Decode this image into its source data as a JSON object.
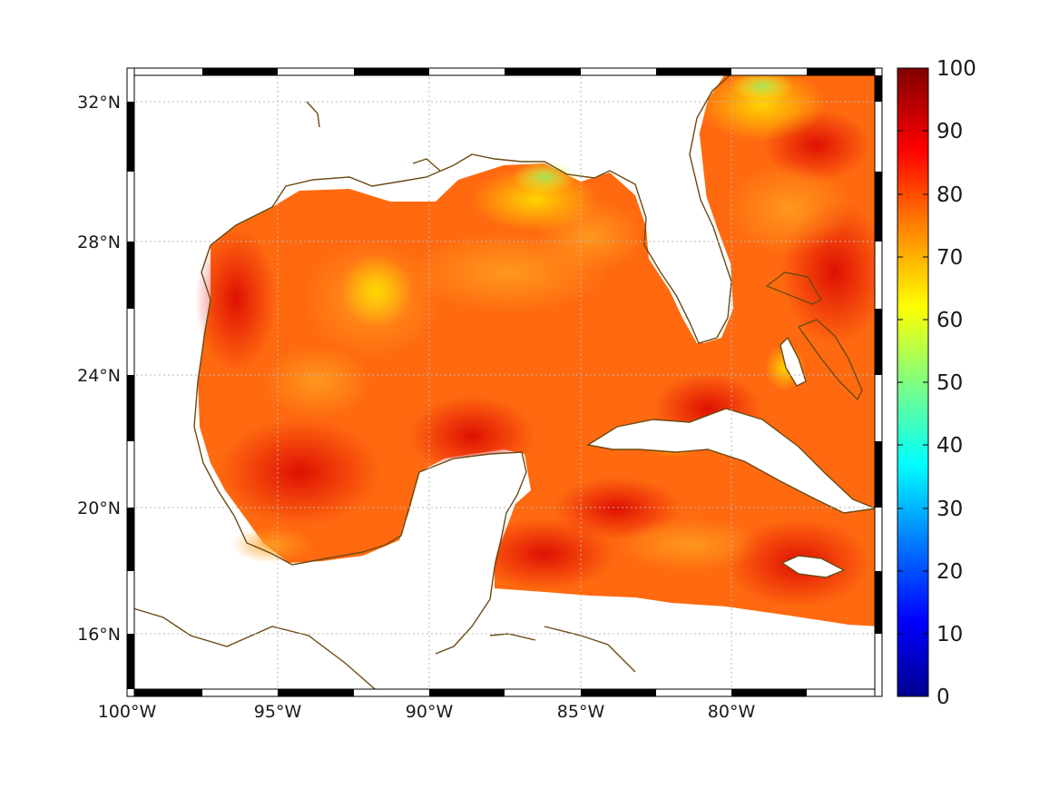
{
  "map": {
    "region": "Gulf of Mexico",
    "lat_ticks": [
      "32°N",
      "28°N",
      "24°N",
      "20°N",
      "16°N"
    ],
    "lat_values": [
      32,
      28,
      24,
      20,
      16
    ],
    "lon_ticks": [
      "100°W",
      "95°W",
      "90°W",
      "85°W",
      "80°W"
    ],
    "lon_values": [
      -100,
      -95,
      -90,
      -85,
      -80
    ],
    "extent": {
      "lon": [
        -100,
        -75
      ],
      "lat": [
        14.2,
        33
      ]
    },
    "grid": "dotted",
    "frame": "black-white checkered"
  },
  "colorbar": {
    "ticks": [
      "100",
      "90",
      "80",
      "70",
      "60",
      "50",
      "40",
      "30",
      "20",
      "10",
      "0"
    ],
    "range": [
      0,
      100
    ],
    "colormap": "jet",
    "colors": [
      "#00008f",
      "#0000ff",
      "#0080ff",
      "#00ffff",
      "#80ff80",
      "#ffff00",
      "#ff8000",
      "#ff0000",
      "#800000"
    ]
  },
  "field": {
    "typical_range": [
      65,
      95
    ],
    "land_color": "#ffffff",
    "coast_color": "#6b4a12"
  }
}
